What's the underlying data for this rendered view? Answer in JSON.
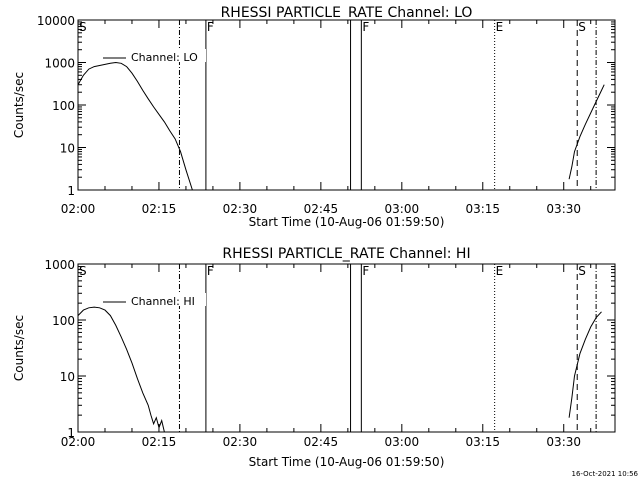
{
  "chart_data": [
    {
      "type": "line",
      "title": "RHESSI PARTICLE_RATE Channel: LO",
      "xlabel": "Start Time (10-Aug-06 01:59:50)",
      "ylabel": "Counts/sec",
      "x_ticks": [
        "02:00",
        "02:15",
        "02:30",
        "02:45",
        "03:00",
        "03:15",
        "03:30"
      ],
      "x_tick_minutes": [
        0,
        15,
        30,
        45,
        60,
        75,
        90
      ],
      "x_range_minutes": [
        0,
        99.5
      ],
      "y_scale": "log",
      "y_range": [
        1,
        10000
      ],
      "y_ticks": [
        "1",
        "10",
        "100",
        "1000",
        "10000"
      ],
      "legend": {
        "label": "Channel: LO",
        "placement": "top-left"
      },
      "markers": [
        {
          "label": "S",
          "minute": 0,
          "style": "none"
        },
        {
          "label": "",
          "minute": 18.8,
          "style": "dashdot"
        },
        {
          "label": "F",
          "minute": 23.7,
          "style": "solid"
        },
        {
          "label": "",
          "minute": 50.5,
          "style": "solid"
        },
        {
          "label": "F",
          "minute": 52.5,
          "style": "solid"
        },
        {
          "label": "E",
          "minute": 77.2,
          "style": "dotted"
        },
        {
          "label": "S",
          "minute": 92.5,
          "style": "dashed"
        },
        {
          "label": "",
          "minute": 96.0,
          "style": "dashdot"
        }
      ],
      "series": [
        {
          "segments": [
            [
              [
                0,
                300
              ],
              [
                1,
                500
              ],
              [
                2,
                700
              ],
              [
                3,
                800
              ],
              [
                4,
                850
              ],
              [
                5,
                900
              ],
              [
                6,
                960
              ],
              [
                7,
                1000
              ],
              [
                8,
                960
              ],
              [
                9,
                800
              ],
              [
                10,
                560
              ],
              [
                11,
                360
              ],
              [
                12,
                220
              ],
              [
                13,
                140
              ],
              [
                14,
                90
              ],
              [
                15,
                60
              ],
              [
                16,
                40
              ],
              [
                17,
                25
              ],
              [
                18,
                16
              ],
              [
                19,
                8
              ],
              [
                20,
                3
              ],
              [
                21.2,
                1
              ]
            ],
            [
              [
                91,
                1.8
              ],
              [
                91.5,
                3.5
              ],
              [
                92,
                8
              ],
              [
                93,
                18
              ],
              [
                94,
                35
              ],
              [
                95,
                65
              ],
              [
                96,
                120
              ],
              [
                97,
                220
              ],
              [
                97.5,
                300
              ]
            ]
          ]
        }
      ]
    },
    {
      "type": "line",
      "title": "RHESSI PARTICLE_RATE Channel: HI",
      "xlabel": "Start Time (10-Aug-06 01:59:50)",
      "ylabel": "Counts/sec",
      "x_ticks": [
        "02:00",
        "02:15",
        "02:30",
        "02:45",
        "03:00",
        "03:15",
        "03:30"
      ],
      "x_tick_minutes": [
        0,
        15,
        30,
        45,
        60,
        75,
        90
      ],
      "x_range_minutes": [
        0,
        99.5
      ],
      "y_scale": "log",
      "y_range": [
        1,
        1000
      ],
      "y_ticks": [
        "1",
        "10",
        "100",
        "1000"
      ],
      "legend": {
        "label": "Channel: HI",
        "placement": "top-left"
      },
      "markers": [
        {
          "label": "S",
          "minute": 0,
          "style": "none"
        },
        {
          "label": "",
          "minute": 18.8,
          "style": "dashdot"
        },
        {
          "label": "F",
          "minute": 23.7,
          "style": "solid"
        },
        {
          "label": "",
          "minute": 50.5,
          "style": "solid"
        },
        {
          "label": "F",
          "minute": 52.5,
          "style": "solid"
        },
        {
          "label": "E",
          "minute": 77.2,
          "style": "dotted"
        },
        {
          "label": "S",
          "minute": 92.5,
          "style": "dashed"
        },
        {
          "label": "",
          "minute": 96.0,
          "style": "dashdot"
        }
      ],
      "series": [
        {
          "segments": [
            [
              [
                0,
                120
              ],
              [
                1,
                150
              ],
              [
                2,
                165
              ],
              [
                3,
                170
              ],
              [
                4,
                165
              ],
              [
                5,
                150
              ],
              [
                6,
                120
              ],
              [
                7,
                80
              ],
              [
                8,
                50
              ],
              [
                9,
                30
              ],
              [
                10,
                17
              ],
              [
                11,
                9
              ],
              [
                12,
                5
              ],
              [
                13,
                3
              ],
              [
                13.5,
                2
              ],
              [
                14,
                1.4
              ],
              [
                14.5,
                1.8
              ],
              [
                15,
                1.2
              ],
              [
                15.5,
                1.6
              ],
              [
                16,
                1
              ]
            ],
            [
              [
                91,
                1.8
              ],
              [
                91.5,
                4
              ],
              [
                92,
                10
              ],
              [
                93,
                25
              ],
              [
                94,
                45
              ],
              [
                95,
                75
              ],
              [
                96,
                110
              ],
              [
                97,
                140
              ]
            ]
          ]
        }
      ]
    }
  ],
  "footer": {
    "timestamp": "16-Oct-2021 10:56"
  }
}
